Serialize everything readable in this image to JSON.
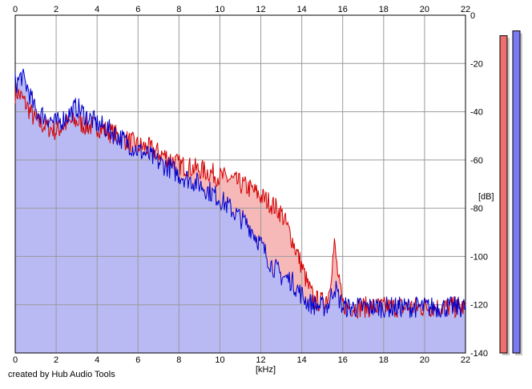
{
  "credit": "created by Hub Audio Tools",
  "colors": {
    "left_line": "#d40000",
    "left_fill": "#f7b8b8",
    "right_line": "#0000cc",
    "right_fill": "#b9b9f4",
    "grid": "#9a9a9a",
    "meter_left": "#ee6f6f",
    "meter_right": "#7a7af2",
    "meter_shadow": "#c8c8c8"
  },
  "chart_data": {
    "type": "area",
    "xlabel": "[kHz]",
    "ylabel": "[dB]",
    "xlim": [
      0,
      22
    ],
    "ylim": [
      -140,
      0
    ],
    "x_ticks": [
      "0",
      "2",
      "4",
      "6",
      "8",
      "10",
      "12",
      "14",
      "16",
      "18",
      "20",
      "22"
    ],
    "y_ticks": [
      "0",
      "-20",
      "-40",
      "-60",
      "-80",
      "-100",
      "-120",
      "-140"
    ],
    "grid": true,
    "series": [
      {
        "color": "red",
        "x": [
          0.1,
          0.3,
          0.6,
          1,
          1.5,
          2,
          2.5,
          3,
          3.5,
          4,
          4.5,
          5,
          5.5,
          6,
          6.5,
          7,
          7.5,
          8,
          8.5,
          9,
          9.5,
          10,
          10.5,
          11,
          11.5,
          12,
          12.5,
          13,
          13.5,
          14,
          14.3,
          14.6,
          15,
          15.3,
          15.6,
          15.8,
          16,
          16.5,
          17,
          18,
          19,
          20,
          21,
          22
        ],
        "y": [
          -32,
          -34,
          -38,
          -44,
          -46,
          -48,
          -45,
          -44,
          -46,
          -46,
          -48,
          -50,
          -52,
          -54,
          -55,
          -57,
          -59,
          -62,
          -63,
          -64,
          -65,
          -67,
          -68,
          -70,
          -72,
          -75,
          -78,
          -82,
          -92,
          -104,
          -112,
          -118,
          -119,
          -116,
          -95,
          -110,
          -120,
          -121,
          -121,
          -121,
          -121,
          -121,
          -121,
          -121
        ]
      },
      {
        "color": "blue",
        "x": [
          0.1,
          0.3,
          0.6,
          1,
          1.5,
          2,
          2.5,
          3,
          3.5,
          4,
          4.5,
          5,
          5.5,
          6,
          6.5,
          7,
          7.5,
          8,
          8.5,
          9,
          9.5,
          10,
          10.5,
          11,
          11.5,
          12,
          12.5,
          13,
          13.5,
          14,
          14.3,
          14.6,
          15,
          15.3,
          15.6,
          15.8,
          16,
          16.5,
          17,
          18,
          19,
          20,
          21,
          22
        ],
        "y": [
          -28,
          -25,
          -30,
          -40,
          -42,
          -45,
          -42,
          -38,
          -42,
          -45,
          -47,
          -50,
          -53,
          -56,
          -58,
          -61,
          -63,
          -66,
          -68,
          -70,
          -73,
          -76,
          -80,
          -84,
          -88,
          -95,
          -103,
          -108,
          -110,
          -116,
          -119,
          -120,
          -121,
          -120,
          -112,
          -117,
          -121,
          -121,
          -121,
          -121,
          -121,
          -121,
          -121,
          -121
        ]
      }
    ]
  },
  "meters": {
    "left_db": -8.5,
    "right_db": -6.5
  }
}
